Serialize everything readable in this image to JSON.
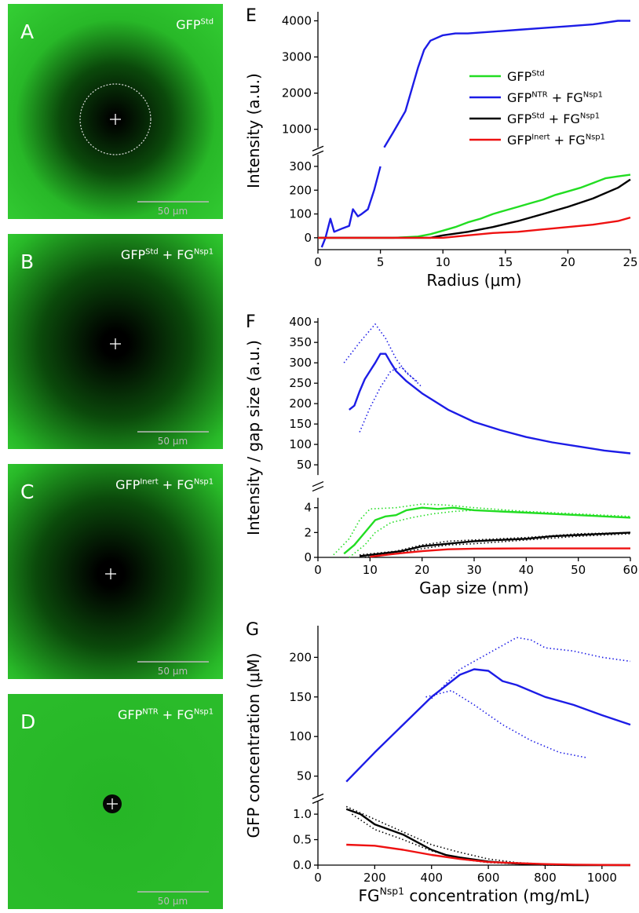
{
  "image_panels": [
    {
      "letter": "A",
      "label": [
        "GFP",
        "Std"
      ],
      "scale": "50 µm"
    },
    {
      "letter": "B",
      "label": [
        "GFP",
        "Std",
        " + FG",
        "Nsp1"
      ],
      "scale": "50 µm"
    },
    {
      "letter": "C",
      "label": [
        "GFP",
        "Inert",
        " + FG",
        "Nsp1"
      ],
      "scale": "50 µm"
    },
    {
      "letter": "D",
      "label": [
        "GFP",
        "NTR",
        " + FG",
        "Nsp1"
      ],
      "scale": "50 µm"
    }
  ],
  "chart_data": [
    {
      "type": "line",
      "label": "E",
      "xlabel": [
        "Radius (μm)"
      ],
      "ylabel": "Intensity (a.u.)",
      "xlim": [
        0,
        25
      ],
      "xticks": [
        0,
        5,
        10,
        15,
        20,
        25
      ],
      "y_segments": [
        {
          "ylim": [
            -50,
            350
          ],
          "yticks": [
            0,
            100,
            200,
            300
          ]
        },
        {
          "ylim": [
            500,
            4250
          ],
          "yticks": [
            1000,
            2000,
            3000,
            4000
          ]
        }
      ],
      "legend": "upper right",
      "series": [
        {
          "name": [
            "GFP",
            "Std"
          ],
          "color": "#22dd22",
          "style": "solid",
          "x": [
            0,
            1,
            2,
            3,
            4,
            5,
            6,
            7,
            8,
            9,
            10,
            11,
            12,
            13,
            14,
            15,
            16,
            17,
            18,
            19,
            20,
            21,
            22,
            23,
            24,
            25
          ],
          "values": [
            0,
            0,
            0,
            0,
            0,
            0,
            0,
            2,
            5,
            15,
            30,
            45,
            65,
            80,
            100,
            115,
            130,
            145,
            160,
            180,
            195,
            210,
            230,
            250,
            258,
            265
          ]
        },
        {
          "name": [
            "GFP",
            "NTR",
            " + FG",
            "Nsp1"
          ],
          "color": "#1c1ce6",
          "style": "solid",
          "x": [
            0.3,
            0.6,
            1,
            1.3,
            2,
            2.5,
            2.8,
            3.2,
            3.5,
            4,
            4.5,
            5,
            5.1,
            5.3,
            6,
            7,
            8,
            8.5,
            9,
            10,
            11,
            12,
            14,
            16,
            18,
            20,
            22,
            24,
            25
          ],
          "values": [
            -40,
            0,
            80,
            25,
            40,
            50,
            120,
            90,
            100,
            120,
            200,
            300,
            null,
            500,
            900,
            1500,
            2700,
            3200,
            3450,
            3600,
            3650,
            3650,
            3700,
            3750,
            3800,
            3850,
            3900,
            4000,
            4000
          ]
        },
        {
          "name": [
            "GFP",
            "Std",
            " + FG",
            "Nsp1"
          ],
          "color": "#000000",
          "style": "solid",
          "x": [
            0,
            5,
            9,
            10,
            12,
            14,
            16,
            18,
            20,
            22,
            24,
            25
          ],
          "values": [
            0,
            0,
            0,
            10,
            25,
            45,
            70,
            100,
            130,
            165,
            210,
            245
          ]
        },
        {
          "name": [
            "GFP",
            "Inert",
            " + FG",
            "Nsp1"
          ],
          "color": "#ee1111",
          "style": "solid",
          "x": [
            0,
            5,
            10,
            12,
            14,
            16,
            18,
            20,
            22,
            24,
            25
          ],
          "values": [
            0,
            0,
            0,
            10,
            20,
            25,
            35,
            45,
            55,
            70,
            85
          ]
        }
      ]
    },
    {
      "type": "line",
      "label": "F",
      "xlabel": [
        "Gap size (nm)"
      ],
      "ylabel": "Intensity / gap size (a.u.)",
      "xlim": [
        0,
        60
      ],
      "xticks": [
        0,
        10,
        20,
        30,
        40,
        50,
        60
      ],
      "y_segments": [
        {
          "ylim": [
            0,
            4.8
          ],
          "yticks": [
            0,
            2,
            4
          ]
        },
        {
          "ylim": [
            25,
            410
          ],
          "yticks": [
            50,
            100,
            150,
            200,
            250,
            300,
            350,
            400
          ]
        }
      ],
      "series": [
        {
          "color": "#1c1ce6",
          "style": "solid",
          "x": [
            6,
            7,
            8,
            9,
            10,
            11,
            12,
            13,
            14,
            15,
            17,
            20,
            25,
            30,
            35,
            40,
            45,
            50,
            55,
            60
          ],
          "values": [
            185,
            195,
            230,
            260,
            280,
            300,
            322,
            322,
            300,
            280,
            255,
            225,
            185,
            155,
            135,
            118,
            105,
            95,
            85,
            78
          ]
        },
        {
          "color": "#1c1ce6",
          "style": "dotted",
          "x": [
            5,
            8,
            11,
            13,
            15,
            17,
            19
          ],
          "values": [
            300,
            350,
            395,
            360,
            310,
            275,
            255
          ]
        },
        {
          "color": "#1c1ce6",
          "style": "dotted",
          "x": [
            8,
            10,
            12,
            14,
            16,
            18,
            20
          ],
          "values": [
            130,
            190,
            240,
            280,
            290,
            265,
            240
          ]
        },
        {
          "color": "#22dd22",
          "style": "solid",
          "x": [
            5,
            7,
            9,
            11,
            13,
            15,
            17,
            20,
            23,
            26,
            30,
            35,
            40,
            45,
            50,
            55,
            60
          ],
          "values": [
            0.3,
            1,
            2,
            3,
            3.3,
            3.4,
            3.8,
            4,
            3.9,
            4,
            3.8,
            3.7,
            3.6,
            3.5,
            3.4,
            3.3,
            3.2
          ]
        },
        {
          "color": "#22dd22",
          "style": "dotted",
          "x": [
            3,
            6,
            8,
            10,
            15,
            20,
            25,
            30,
            40,
            50,
            60
          ],
          "values": [
            0.2,
            1.5,
            3,
            3.9,
            4,
            4.3,
            4.2,
            4,
            3.7,
            3.5,
            3.3
          ]
        },
        {
          "color": "#22dd22",
          "style": "dotted",
          "x": [
            6,
            9,
            11,
            14,
            18,
            22,
            26,
            30,
            40,
            50,
            60
          ],
          "values": [
            0,
            1,
            2,
            2.8,
            3.2,
            3.5,
            3.7,
            3.8,
            3.6,
            3.4,
            3.2
          ]
        },
        {
          "color": "#000000",
          "style": "dotted",
          "x": [
            8,
            15,
            20,
            25,
            30,
            40,
            50,
            60
          ],
          "values": [
            0.2,
            0.5,
            1,
            1.3,
            1.4,
            1.6,
            1.9,
            2.0
          ]
        },
        {
          "color": "#000000",
          "style": "dotted",
          "x": [
            9,
            15,
            20,
            25,
            30,
            40,
            50,
            60
          ],
          "values": [
            0,
            0.3,
            0.7,
            1,
            1.1,
            1.4,
            1.7,
            1.9
          ]
        },
        {
          "color": "#000000",
          "style": "solid",
          "x": [
            8,
            12,
            16,
            20,
            25,
            30,
            35,
            40,
            45,
            50,
            55,
            60
          ],
          "values": [
            0.1,
            0.3,
            0.5,
            0.9,
            1.1,
            1.3,
            1.4,
            1.5,
            1.7,
            1.8,
            1.9,
            2.0
          ]
        },
        {
          "color": "#ee1111",
          "style": "solid",
          "x": [
            10,
            15,
            20,
            25,
            30,
            40,
            50,
            60
          ],
          "values": [
            0.05,
            0.3,
            0.5,
            0.65,
            0.7,
            0.72,
            0.72,
            0.72
          ]
        }
      ]
    },
    {
      "type": "line",
      "label": "G",
      "xlabel": [
        "FG",
        "Nsp1",
        " concentration (mg/mL)"
      ],
      "ylabel": "GFP concentration (μM)",
      "xlim": [
        0,
        1100
      ],
      "xticks": [
        0,
        200,
        400,
        600,
        800,
        1000
      ],
      "y_segments": [
        {
          "ylim": [
            0,
            1.25
          ],
          "yticks": [
            {
              "value": 0,
              "label": "0.0"
            },
            {
              "value": 0.5,
              "label": "0.5"
            },
            {
              "value": 1,
              "label": "1.0"
            }
          ]
        },
        {
          "ylim": [
            25,
            240
          ],
          "yticks": [
            50,
            100,
            150,
            200
          ]
        }
      ],
      "series": [
        {
          "color": "#1c1ce6",
          "style": "solid",
          "x": [
            100,
            200,
            300,
            400,
            500,
            550,
            600,
            650,
            700,
            800,
            900,
            1000,
            1100
          ],
          "values": [
            43,
            80,
            115,
            150,
            178,
            185,
            183,
            170,
            165,
            150,
            140,
            127,
            115
          ]
        },
        {
          "color": "#1c1ce6",
          "style": "dotted",
          "x": [
            400,
            500,
            600,
            700,
            750,
            800,
            900,
            1000,
            1100
          ],
          "values": [
            148,
            185,
            205,
            225,
            222,
            212,
            208,
            200,
            195
          ]
        },
        {
          "color": "#1c1ce6",
          "style": "dotted",
          "x": [
            380,
            470,
            550,
            650,
            750,
            850,
            950
          ],
          "values": [
            150,
            158,
            140,
            115,
            95,
            80,
            73
          ]
        },
        {
          "color": "#000000",
          "style": "dotted",
          "x": [
            100,
            200,
            300,
            400,
            500,
            600,
            700,
            800,
            1000
          ],
          "values": [
            1.15,
            0.9,
            0.65,
            0.4,
            0.25,
            0.12,
            0.05,
            0.02,
            0
          ]
        },
        {
          "color": "#000000",
          "style": "dotted",
          "x": [
            120,
            200,
            300,
            400,
            500,
            600,
            800,
            1100
          ],
          "values": [
            1.0,
            0.7,
            0.5,
            0.28,
            0.12,
            0.05,
            0,
            0
          ]
        },
        {
          "color": "#000000",
          "style": "solid",
          "x": [
            100,
            150,
            200,
            250,
            300,
            350,
            400,
            450,
            500,
            600,
            700,
            800,
            900,
            1000,
            1100
          ],
          "values": [
            1.1,
            1.0,
            0.8,
            0.7,
            0.6,
            0.45,
            0.3,
            0.2,
            0.15,
            0.07,
            0.03,
            0.01,
            0,
            0,
            0
          ]
        },
        {
          "color": "#ee1111",
          "style": "solid",
          "x": [
            100,
            200,
            300,
            400,
            500,
            600,
            700,
            800,
            900,
            1100
          ],
          "values": [
            0.4,
            0.38,
            0.3,
            0.2,
            0.12,
            0.06,
            0.04,
            0.02,
            0.01,
            0
          ]
        }
      ]
    }
  ]
}
